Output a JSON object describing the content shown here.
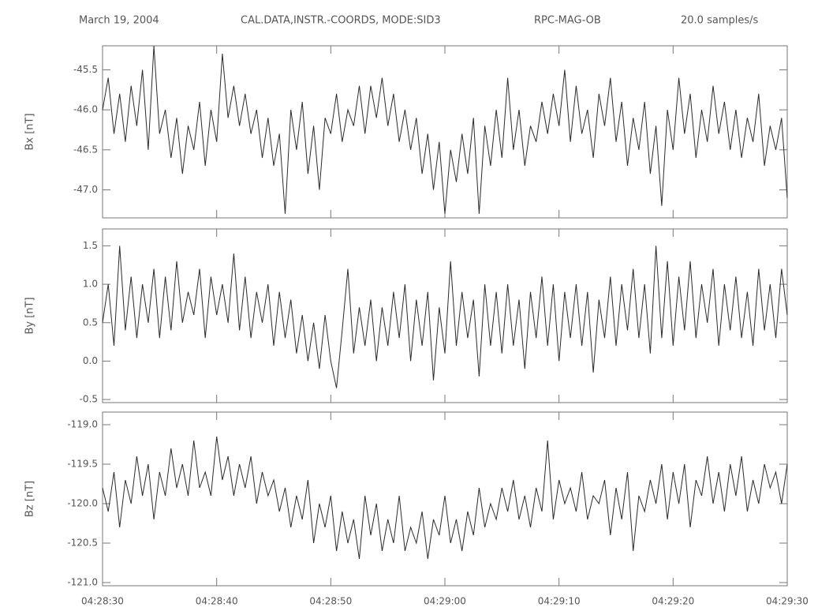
{
  "chart_data": {
    "type": "line",
    "date": "March 19, 2004",
    "title": "CAL.DATA,INSTR.-COORDS, MODE:SID3",
    "instrument": "RPC-MAG-OB",
    "sample_rate": "20.0 samples/s",
    "color": "#2a2a2a",
    "xlim": [
      16110,
      16170
    ],
    "xticks": [
      {
        "value": 16110,
        "label": "04:28:30"
      },
      {
        "value": 16120,
        "label": "04:28:40"
      },
      {
        "value": 16130,
        "label": "04:28:50"
      },
      {
        "value": 16140,
        "label": "04:29:00"
      },
      {
        "value": 16150,
        "label": "04:29:10"
      },
      {
        "value": 16160,
        "label": "04:29:20"
      },
      {
        "value": 16170,
        "label": "04:29:30"
      }
    ],
    "x": [
      16110,
      16110.5,
      16111,
      16111.5,
      16112,
      16112.5,
      16113,
      16113.5,
      16114,
      16114.5,
      16115,
      16115.5,
      16116,
      16116.5,
      16117,
      16117.5,
      16118,
      16118.5,
      16119,
      16119.5,
      16120,
      16120.5,
      16121,
      16121.5,
      16122,
      16122.5,
      16123,
      16123.5,
      16124,
      16124.5,
      16125,
      16125.5,
      16126,
      16126.5,
      16127,
      16127.5,
      16128,
      16128.5,
      16129,
      16129.5,
      16130,
      16130.5,
      16131,
      16131.5,
      16132,
      16132.5,
      16133,
      16133.5,
      16134,
      16134.5,
      16135,
      16135.5,
      16136,
      16136.5,
      16137,
      16137.5,
      16138,
      16138.5,
      16139,
      16139.5,
      16140,
      16140.5,
      16141,
      16141.5,
      16142,
      16142.5,
      16143,
      16143.5,
      16144,
      16144.5,
      16145,
      16145.5,
      16146,
      16146.5,
      16147,
      16147.5,
      16148,
      16148.5,
      16149,
      16149.5,
      16150,
      16150.5,
      16151,
      16151.5,
      16152,
      16152.5,
      16153,
      16153.5,
      16154,
      16154.5,
      16155,
      16155.5,
      16156,
      16156.5,
      16157,
      16157.5,
      16158,
      16158.5,
      16159,
      16159.5,
      16160,
      16160.5,
      16161,
      16161.5,
      16162,
      16162.5,
      16163,
      16163.5,
      16164,
      16164.5,
      16165,
      16165.5,
      16166,
      16166.5,
      16167,
      16167.5,
      16168,
      16168.5,
      16169,
      16169.5,
      16170
    ],
    "panels": [
      {
        "ylabel": "Bx [nT]",
        "ylim": [
          -47.35,
          -45.2
        ],
        "yticks": [
          {
            "value": -47,
            "label": "-47.0"
          },
          -46.5,
          {
            "value": -46,
            "label": "-46.0"
          },
          -45.5
        ],
        "values": [
          -46.0,
          -45.6,
          -46.3,
          -45.8,
          -46.4,
          -45.7,
          -46.2,
          -45.5,
          -46.5,
          -45.2,
          -46.3,
          -46.0,
          -46.6,
          -46.1,
          -46.8,
          -46.2,
          -46.5,
          -45.9,
          -46.7,
          -46.0,
          -46.4,
          -45.3,
          -46.1,
          -45.7,
          -46.2,
          -45.8,
          -46.3,
          -46.0,
          -46.6,
          -46.1,
          -46.7,
          -46.3,
          -47.3,
          -46.0,
          -46.5,
          -45.9,
          -46.8,
          -46.2,
          -47.0,
          -46.1,
          -46.3,
          -45.8,
          -46.4,
          -46.0,
          -46.2,
          -45.7,
          -46.3,
          -45.7,
          -46.1,
          -45.6,
          -46.2,
          -45.8,
          -46.4,
          -46.0,
          -46.5,
          -46.1,
          -46.8,
          -46.3,
          -47.0,
          -46.4,
          -47.3,
          -46.5,
          -46.9,
          -46.3,
          -46.8,
          -46.1,
          -47.3,
          -46.2,
          -46.7,
          -46.0,
          -46.6,
          -45.6,
          -46.5,
          -46.0,
          -46.7,
          -46.2,
          -46.4,
          -45.9,
          -46.3,
          -45.8,
          -46.2,
          -45.5,
          -46.4,
          -45.7,
          -46.3,
          -46.0,
          -46.6,
          -45.8,
          -46.2,
          -45.6,
          -46.4,
          -45.9,
          -46.7,
          -46.1,
          -46.5,
          -45.9,
          -46.8,
          -46.2,
          -47.2,
          -46.0,
          -46.5,
          -45.6,
          -46.3,
          -45.8,
          -46.6,
          -46.0,
          -46.4,
          -45.7,
          -46.3,
          -45.9,
          -46.5,
          -46.0,
          -46.6,
          -46.1,
          -46.4,
          -45.8,
          -46.7,
          -46.2,
          -46.5,
          -46.1,
          -47.1
        ]
      },
      {
        "ylabel": "By [nT]",
        "ylim": [
          -0.54,
          1.72
        ],
        "yticks": [
          -0.5,
          {
            "value": 0,
            "label": "0.0"
          },
          0.5,
          {
            "value": 1,
            "label": "1.0"
          },
          1.5
        ],
        "values": [
          0.5,
          1.0,
          0.2,
          1.5,
          0.4,
          1.1,
          0.3,
          1.0,
          0.5,
          1.2,
          0.3,
          1.1,
          0.4,
          1.3,
          0.5,
          0.9,
          0.6,
          1.2,
          0.3,
          1.1,
          0.6,
          1.0,
          0.5,
          1.4,
          0.4,
          1.1,
          0.3,
          0.9,
          0.5,
          1.0,
          0.2,
          0.9,
          0.3,
          0.8,
          0.1,
          0.6,
          0.0,
          0.5,
          -0.1,
          0.6,
          0.0,
          -0.35,
          0.4,
          1.2,
          0.1,
          0.7,
          0.2,
          0.8,
          0.0,
          0.7,
          0.2,
          0.9,
          0.3,
          1.0,
          0.0,
          0.8,
          0.2,
          0.9,
          -0.25,
          0.7,
          0.1,
          1.3,
          0.2,
          0.9,
          0.3,
          0.8,
          -0.2,
          1.0,
          0.2,
          0.9,
          0.1,
          1.0,
          0.2,
          0.8,
          -0.1,
          0.9,
          0.3,
          1.1,
          0.2,
          1.0,
          0.0,
          0.9,
          0.3,
          1.0,
          0.2,
          0.9,
          -0.15,
          0.8,
          0.3,
          1.1,
          0.2,
          1.0,
          0.4,
          1.2,
          0.3,
          1.0,
          0.1,
          1.5,
          0.3,
          1.3,
          0.2,
          1.1,
          0.4,
          1.3,
          0.3,
          1.0,
          0.5,
          1.2,
          0.2,
          1.0,
          0.4,
          1.1,
          0.3,
          0.9,
          0.2,
          1.2,
          0.4,
          1.0,
          0.3,
          1.2,
          0.6
        ]
      },
      {
        "ylabel": "Bz [nT]",
        "ylim": [
          -121.04,
          -118.84
        ],
        "yticks": [
          {
            "value": -121,
            "label": "-121.0"
          },
          -120.5,
          {
            "value": -120,
            "label": "-120.0"
          },
          -119.5,
          {
            "value": -119,
            "label": "-119.0"
          }
        ],
        "values": [
          -119.8,
          -120.1,
          -119.6,
          -120.3,
          -119.7,
          -120.0,
          -119.4,
          -119.9,
          -119.5,
          -120.2,
          -119.6,
          -119.9,
          -119.3,
          -119.8,
          -119.5,
          -119.9,
          -119.2,
          -119.8,
          -119.6,
          -119.9,
          -119.15,
          -119.7,
          -119.4,
          -119.9,
          -119.5,
          -119.8,
          -119.4,
          -120.0,
          -119.6,
          -119.9,
          -119.7,
          -120.1,
          -119.8,
          -120.3,
          -119.9,
          -120.2,
          -119.7,
          -120.5,
          -120.0,
          -120.3,
          -119.9,
          -120.6,
          -120.1,
          -120.5,
          -120.2,
          -120.7,
          -119.9,
          -120.4,
          -120.0,
          -120.6,
          -120.2,
          -120.5,
          -119.9,
          -120.6,
          -120.3,
          -120.5,
          -120.1,
          -120.7,
          -120.2,
          -120.4,
          -119.9,
          -120.5,
          -120.2,
          -120.6,
          -120.1,
          -120.4,
          -119.8,
          -120.3,
          -120.0,
          -120.2,
          -119.8,
          -120.1,
          -119.7,
          -120.2,
          -119.9,
          -120.3,
          -119.8,
          -120.1,
          -119.2,
          -120.2,
          -119.7,
          -120.0,
          -119.8,
          -120.1,
          -119.6,
          -120.2,
          -119.9,
          -120.0,
          -119.7,
          -120.4,
          -119.8,
          -120.2,
          -119.6,
          -120.6,
          -119.9,
          -120.1,
          -119.7,
          -120.0,
          -119.5,
          -120.2,
          -119.6,
          -120.0,
          -119.5,
          -120.3,
          -119.7,
          -119.9,
          -119.4,
          -120.0,
          -119.6,
          -120.1,
          -119.5,
          -119.9,
          -119.4,
          -120.1,
          -119.7,
          -120.0,
          -119.5,
          -119.8,
          -119.6,
          -120.0,
          -119.5
        ]
      }
    ]
  }
}
